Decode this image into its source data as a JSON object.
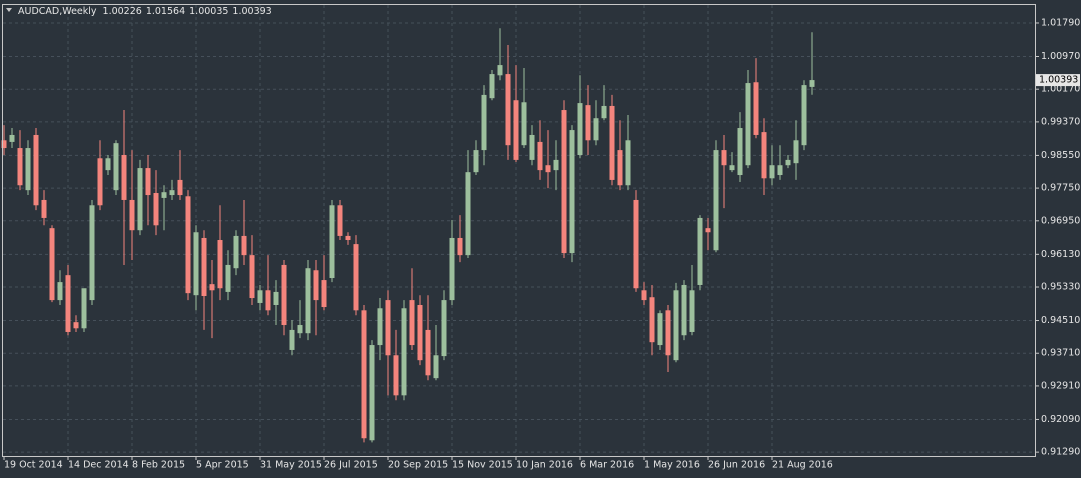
{
  "chart_data": {
    "type": "candlestick",
    "title": "AUDCAD,Weekly",
    "up_color": "#9dbf9d",
    "down_color": "#f4857d",
    "grid": true,
    "ylim": [
      0.9122,
      1.0223
    ],
    "yticks": [
      {
        "value": 1.0179,
        "label": "1.01790"
      },
      {
        "value": 1.0097,
        "label": "1.00970"
      },
      {
        "value": 1.0017,
        "label": "1.00170"
      },
      {
        "value": 0.9937,
        "label": "0.99370"
      },
      {
        "value": 0.9855,
        "label": "0.98550"
      },
      {
        "value": 0.9775,
        "label": "0.97750"
      },
      {
        "value": 0.9695,
        "label": "0.96950"
      },
      {
        "value": 0.9613,
        "label": "0.96130"
      },
      {
        "value": 0.9533,
        "label": "0.95330"
      },
      {
        "value": 0.9451,
        "label": "0.94510"
      },
      {
        "value": 0.9371,
        "label": "0.93710"
      },
      {
        "value": 0.9291,
        "label": "0.92910"
      },
      {
        "value": 0.9209,
        "label": "0.92090"
      },
      {
        "value": 0.9129,
        "label": "0.91290"
      }
    ],
    "categories": [
      "19 Oct 2014",
      null,
      null,
      null,
      null,
      null,
      null,
      null,
      "14 Dec 2014",
      null,
      null,
      null,
      null,
      null,
      null,
      null,
      "8 Feb 2015",
      null,
      null,
      null,
      null,
      null,
      null,
      null,
      "5 Apr 2015",
      null,
      null,
      null,
      null,
      null,
      null,
      null,
      "31 May 2015",
      null,
      null,
      null,
      null,
      null,
      null,
      null,
      "26 Jul 2015",
      null,
      null,
      null,
      null,
      null,
      null,
      null,
      "20 Sep 2015",
      null,
      null,
      null,
      null,
      null,
      null,
      null,
      "15 Nov 2015",
      null,
      null,
      null,
      null,
      null,
      null,
      null,
      "10 Jan 2016",
      null,
      null,
      null,
      null,
      null,
      null,
      null,
      "6 Mar 2016",
      null,
      null,
      null,
      null,
      null,
      null,
      null,
      "1 May 2016",
      null,
      null,
      null,
      null,
      null,
      null,
      null,
      "26 Jun 2016",
      null,
      null,
      null,
      null,
      null,
      null,
      null,
      "21 Aug 2016",
      null,
      null,
      null,
      null,
      null
    ],
    "open": [
      0.9892,
      0.9888,
      0.9873,
      0.977,
      0.9905,
      0.9746,
      0.9677,
      0.9501,
      0.9562,
      0.9447,
      0.9432,
      0.9501,
      0.9848,
      0.9819,
      0.977,
      0.9856,
      0.9746,
      0.9672,
      0.9824,
      0.9763,
      0.9751,
      0.9758,
      0.9795,
      0.9755,
      0.9513,
      0.9653,
      0.954,
      0.9648,
      0.9521,
      0.9579,
      0.9658,
      0.9611,
      0.9494,
      0.9525,
      0.9489,
      0.9587,
      0.9379,
      0.942,
      0.942,
      0.9574,
      0.955,
      0.9555,
      0.9733,
      0.9658,
      0.9638,
      0.9476,
      0.9158,
      0.9391,
      0.9501,
      0.9366,
      0.9268,
      0.9501,
      0.9489,
      0.9428,
      0.931,
      0.9364,
      0.9501,
      0.9653,
      0.9611,
      0.9814,
      0.9868,
      0.9995,
      1.0051,
      1.0054,
      0.999,
      0.988,
      0.9844,
      0.9888,
      0.9831,
      0.9819,
      0.9966,
      0.9616,
      0.9856,
      0.9978,
      0.9892,
      0.9946,
      0.9976,
      0.9868,
      0.9782,
      0.9746,
      0.9525,
      0.9508,
      0.9391,
      0.9476,
      0.9354,
      0.9415,
      0.9423,
      0.9538,
      0.9677,
      0.9623,
      0.9868,
      0.9819,
      0.9807,
      0.9831,
      1.0034,
      0.9912,
      0.9799,
      0.9807,
      0.9831,
      0.9836,
      0.988,
      1.00226
    ],
    "high": [
      0.9929,
      0.9922,
      0.9917,
      0.9892,
      0.9922,
      0.977,
      0.9684,
      0.9574,
      0.9587,
      0.9464,
      0.9525,
      0.9746,
      0.9892,
      0.9856,
      0.9892,
      0.9966,
      0.9868,
      0.9844,
      0.9856,
      0.9819,
      0.9782,
      0.9795,
      0.9868,
      0.977,
      0.9684,
      0.9672,
      0.9599,
      0.9733,
      0.9623,
      0.9672,
      0.9746,
      0.966,
      0.9538,
      0.9611,
      0.955,
      0.9599,
      0.9452,
      0.9501,
      0.9599,
      0.9599,
      0.9611,
      0.9746,
      0.9746,
      0.9667,
      0.966,
      0.9489,
      0.9403,
      0.9506,
      0.9525,
      0.9428,
      0.9501,
      0.9579,
      0.9513,
      0.9513,
      0.944,
      0.9525,
      0.9697,
      0.9709,
      0.9868,
      0.9892,
      1.0027,
      1.0064,
      1.0166,
      1.0125,
      1.0076,
      1.0069,
      0.9929,
      0.9941,
      0.9917,
      0.9892,
      0.999,
      0.9929,
      1.0051,
      1.0027,
      0.999,
      1.0027,
      1.0003,
      0.9941,
      0.9954,
      0.977,
      0.9545,
      0.9538,
      0.9476,
      0.9489,
      0.9543,
      0.955,
      0.9587,
      0.9709,
      0.9702,
      0.9892,
      0.9905,
      0.9863,
      0.9961,
      1.0064,
      1.0093,
      0.9946,
      0.988,
      0.988,
      0.9856,
      0.9941,
      1.0039,
      1.01564
    ],
    "low": [
      0.9856,
      0.9873,
      0.977,
      0.9758,
      0.9721,
      0.9684,
      0.9496,
      0.9489,
      0.9415,
      0.9423,
      0.9423,
      0.9489,
      0.9721,
      0.9807,
      0.9758,
      0.9587,
      0.9599,
      0.966,
      0.9684,
      0.966,
      0.9672,
      0.9746,
      0.9746,
      0.9501,
      0.9476,
      0.9428,
      0.9408,
      0.9501,
      0.9501,
      0.9562,
      0.9587,
      0.9489,
      0.9476,
      0.9464,
      0.944,
      0.9415,
      0.9366,
      0.9408,
      0.9403,
      0.9415,
      0.9476,
      0.9545,
      0.9648,
      0.9636,
      0.9464,
      0.9153,
      0.9153,
      0.9354,
      0.9268,
      0.9256,
      0.9256,
      0.9379,
      0.9342,
      0.9305,
      0.9305,
      0.9354,
      0.9489,
      0.9594,
      0.9604,
      0.9807,
      0.9831,
      0.999,
      1.0039,
      0.9844,
      0.9839,
      0.9873,
      0.9831,
      0.9795,
      0.9775,
      0.977,
      0.9604,
      0.9594,
      0.9848,
      0.9856,
      0.988,
      0.9941,
      0.9782,
      0.977,
      0.977,
      0.9521,
      0.9489,
      0.9366,
      0.9379,
      0.9325,
      0.9349,
      0.9403,
      0.9415,
      0.9525,
      0.9623,
      0.9618,
      0.9726,
      0.9814,
      0.979,
      0.9824,
      0.9897,
      0.9758,
      0.9782,
      0.9795,
      0.9824,
      0.9795,
      0.9868,
      1.00035
    ],
    "close": [
      0.9873,
      0.9905,
      0.9782,
      0.9873,
      0.9733,
      0.9702,
      0.9501,
      0.9545,
      0.9423,
      0.9432,
      0.953,
      0.9733,
      0.9733,
      0.9848,
      0.9885,
      0.9746,
      0.9672,
      0.9824,
      0.9758,
      0.9684,
      0.9765,
      0.977,
      0.9758,
      0.9518,
      0.9667,
      0.9511,
      0.9525,
      0.953,
      0.9587,
      0.9658,
      0.9611,
      0.9506,
      0.9525,
      0.9476,
      0.9521,
      0.944,
      0.9428,
      0.944,
      0.9579,
      0.9501,
      0.9484,
      0.9733,
      0.9658,
      0.9648,
      0.9476,
      0.9163,
      0.9391,
      0.9481,
      0.9366,
      0.9268,
      0.9481,
      0.9391,
      0.9354,
      0.9317,
      0.9366,
      0.9501,
      0.9653,
      0.9611,
      0.9814,
      0.9868,
      1.0003,
      1.0054,
      1.0076,
      0.988,
      0.9844,
      0.9985,
      0.9905,
      0.9819,
      0.9814,
      0.9844,
      0.9616,
      0.9917,
      0.9983,
      0.9892,
      0.9946,
      0.9976,
      0.9795,
      0.9782,
      0.9892,
      0.953,
      0.9501,
      0.9398,
      0.9469,
      0.9366,
      0.9525,
      0.9538,
      0.9525,
      0.9702,
      0.9667,
      0.9868,
      0.9831,
      0.9831,
      0.9922,
      1.0032,
      0.9905,
      0.9799,
      0.9831,
      0.9831,
      0.9844,
      0.9892,
      1.0027,
      1.00393
    ]
  }
}
